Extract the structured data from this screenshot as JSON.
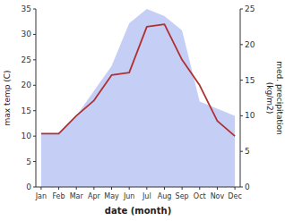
{
  "chart_data": {
    "type": "line",
    "xlabel": "date (month)",
    "ylabel": "max temp (C)",
    "y2label": "med. precipitation\n(kg/m2)",
    "categories": [
      "Jan",
      "Feb",
      "Mar",
      "Apr",
      "May",
      "Jun",
      "Jul",
      "Aug",
      "Sep",
      "Oct",
      "Nov",
      "Dec"
    ],
    "series": [
      {
        "type": "area",
        "color": "#c5cef5",
        "axis": "y2",
        "values": [
          7.5,
          7.5,
          10.0,
          13.5,
          17.0,
          23.0,
          25.0,
          24.0,
          22.0,
          12.0,
          11.0,
          10.0
        ]
      },
      {
        "type": "line",
        "color": "#b03030",
        "values": [
          10.5,
          10.5,
          14.0,
          17.0,
          22.0,
          22.5,
          31.5,
          32.0,
          25.0,
          20.0,
          13.0,
          10.0
        ]
      }
    ],
    "ylim": [
      0,
      35
    ],
    "yticks": [
      0,
      5,
      10,
      15,
      20,
      25,
      30,
      35
    ],
    "y2lim": [
      0,
      25
    ],
    "y2ticks": [
      0,
      5,
      10,
      15,
      20,
      25
    ],
    "grid": false
  }
}
